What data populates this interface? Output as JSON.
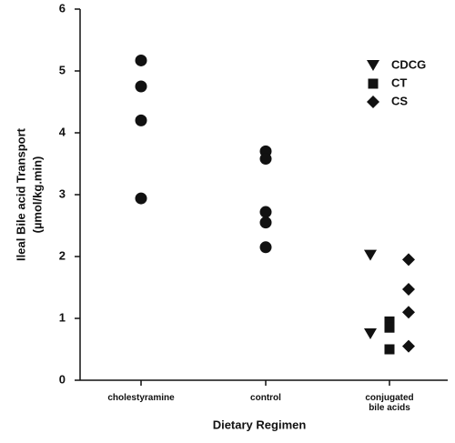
{
  "chart_data": {
    "type": "scatter",
    "categories": [
      "cholestyramine",
      "control",
      "conjugated bile acids"
    ],
    "xlabel": "Dietary Regimen",
    "ylabel": [
      "Ileal Bile acid Transport",
      "(µmol/kg.min)"
    ],
    "ylim": [
      0,
      6
    ],
    "yticks": [
      0,
      1,
      2,
      3,
      4,
      5,
      6
    ],
    "legend": "upper right",
    "series": [
      {
        "marker": "circle",
        "color": "#111111",
        "values": [
          [
            5.17,
            4.75,
            4.2,
            2.94
          ],
          [
            3.7,
            3.58,
            2.72,
            2.55,
            2.15
          ],
          null
        ]
      },
      {
        "name": "CDCG",
        "marker": "triangle-down",
        "color": "#111111",
        "values": [
          null,
          null,
          [
            2.02,
            0.75
          ]
        ]
      },
      {
        "name": "CT",
        "marker": "square",
        "color": "#111111",
        "values": [
          null,
          null,
          [
            0.95,
            0.85,
            0.5
          ]
        ]
      },
      {
        "name": "CS",
        "marker": "diamond",
        "color": "#111111",
        "values": [
          null,
          null,
          [
            1.95,
            1.47,
            1.1,
            0.55
          ]
        ]
      }
    ]
  }
}
